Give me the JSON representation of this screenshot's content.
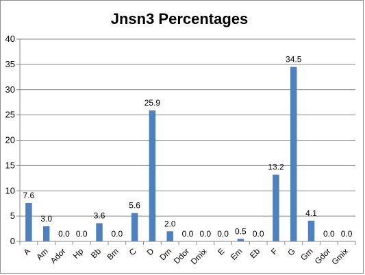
{
  "chart_data": {
    "type": "bar",
    "title": "Jnsn3 Percentages",
    "categories": [
      "A",
      "Am",
      "Ador",
      "Hp",
      "Bb",
      "Bm",
      "C",
      "D",
      "Dm",
      "Ddor",
      "Dmix",
      "E",
      "Em",
      "Eb",
      "F",
      "G",
      "Gm",
      "Gdor",
      "Gmix"
    ],
    "values": [
      7.6,
      3.0,
      0.0,
      0.0,
      3.6,
      0.0,
      5.6,
      25.9,
      2.0,
      0.0,
      0.0,
      0.0,
      0.5,
      0.0,
      13.2,
      34.5,
      4.1,
      0.0,
      0.0
    ],
    "data_labels": [
      "7.6",
      "3.0",
      "0.0",
      "0.0",
      "3.6",
      "0.0",
      "5.6",
      "25.9",
      "2.0",
      "0.0",
      "0.0",
      "0.0",
      "0.5",
      "0.0",
      "13.2",
      "34.5",
      "4.1",
      "0.0",
      "0.0"
    ],
    "ylim": [
      0,
      40
    ],
    "yticks": [
      "0",
      "5",
      "10",
      "15",
      "20",
      "25",
      "30",
      "35",
      "40"
    ],
    "grid": true,
    "legend": "none",
    "bar_color": "#4f81bd"
  }
}
